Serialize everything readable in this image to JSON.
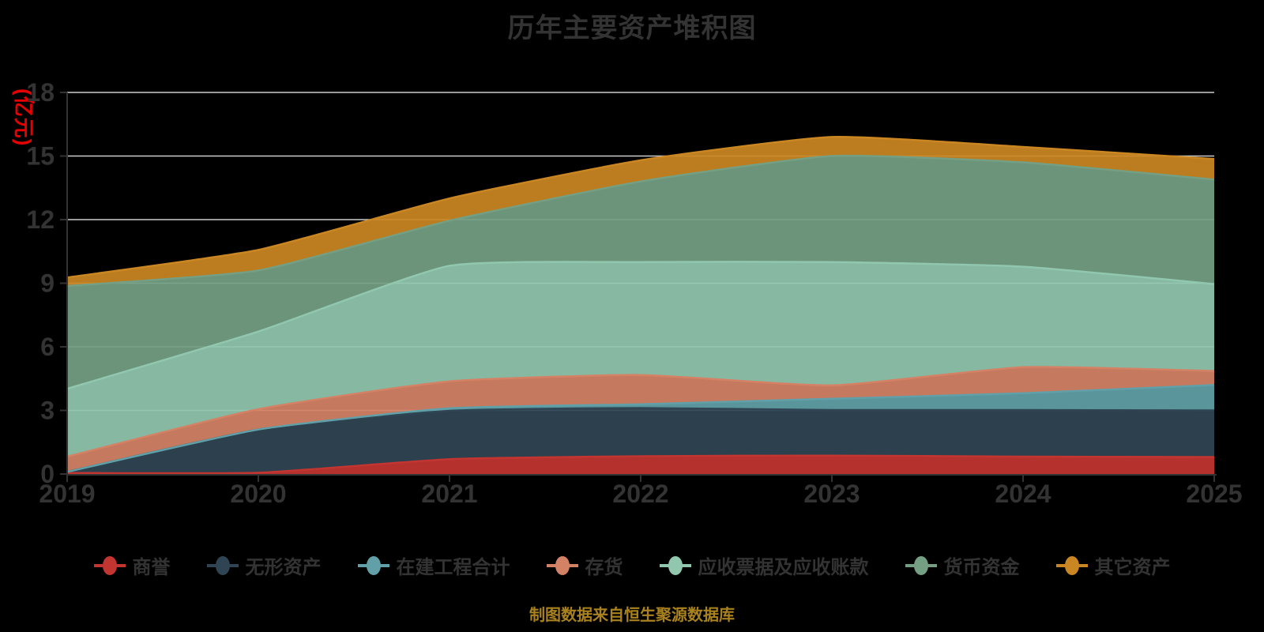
{
  "title": "历年主要资产堆积图",
  "y_axis": {
    "name": "(亿元)",
    "name_color": "#e60000",
    "tick_labels": [
      "0",
      "3",
      "6",
      "9",
      "12",
      "15",
      "18"
    ],
    "min": 0,
    "max": 18
  },
  "x_axis": {
    "tick_labels": [
      "2019",
      "2020",
      "2021",
      "2022",
      "2023",
      "2024",
      "2025"
    ]
  },
  "footer": {
    "text": "制图数据来自恒生聚源数据库",
    "color": "#a9821e"
  },
  "colors": {
    "background": "#000000",
    "grid_line": "#cccccc",
    "axis_line": "#333333",
    "text": "#333333"
  },
  "chart_data": {
    "type": "area",
    "stacked": true,
    "smooth": true,
    "title": "历年主要资产堆积图",
    "ylabel": "(亿元)",
    "ylim": [
      0,
      18
    ],
    "yticks": [
      0,
      3,
      6,
      9,
      12,
      15,
      18
    ],
    "grid": true,
    "legend_position": "bottom",
    "categories": [
      "2019",
      "2020",
      "2021",
      "2022",
      "2023",
      "2024",
      "2025"
    ],
    "series": [
      {
        "name": "商誉",
        "color": "#c23531",
        "values": [
          0.05,
          0.06,
          0.7,
          0.84,
          0.87,
          0.82,
          0.8
        ]
      },
      {
        "name": "无形资产",
        "color": "#2f4554",
        "values": [
          0.05,
          2.04,
          2.28,
          2.27,
          2.15,
          2.2,
          2.2
        ]
      },
      {
        "name": "在建工程合计",
        "color": "#61a0a8",
        "values": [
          0.0,
          0.0,
          0.12,
          0.18,
          0.53,
          0.79,
          1.2
        ]
      },
      {
        "name": "存货",
        "color": "#d48265",
        "values": [
          0.72,
          0.96,
          1.27,
          1.38,
          0.63,
          1.23,
          0.66
        ]
      },
      {
        "name": "应收票据及应收账款",
        "color": "#91c7ae",
        "values": [
          3.2,
          3.66,
          5.45,
          5.33,
          5.82,
          4.74,
          4.1
        ]
      },
      {
        "name": "货币资金",
        "color": "#749f83",
        "values": [
          4.85,
          2.88,
          2.13,
          3.8,
          5.0,
          4.92,
          4.93
        ]
      },
      {
        "name": "其它资产",
        "color": "#ca8622",
        "values": [
          0.4,
          0.97,
          1.05,
          1.0,
          0.9,
          0.73,
          0.97
        ]
      }
    ],
    "stack_totals": [
      9.27,
      10.57,
      13.0,
      14.8,
      15.9,
      15.43,
      14.86
    ]
  }
}
